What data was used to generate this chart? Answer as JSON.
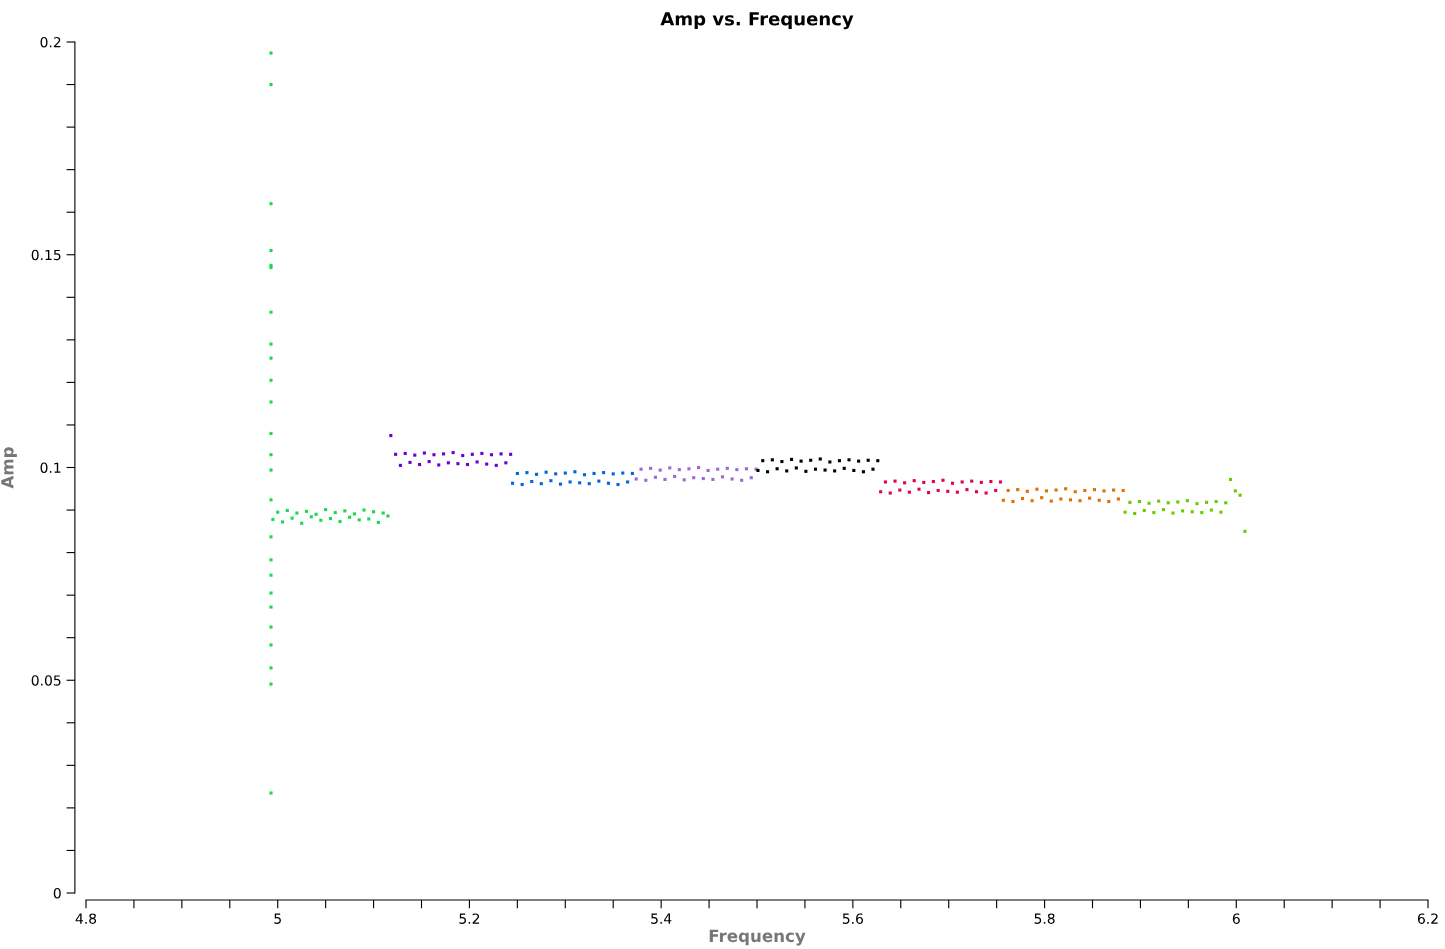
{
  "chart_data": {
    "type": "scatter",
    "title": "Amp vs. Frequency",
    "xlabel": "Frequency",
    "ylabel": "Amp",
    "marker": "square",
    "grid": false,
    "legend": false,
    "xlim": [
      4.8,
      6.2
    ],
    "ylim": [
      0,
      0.2
    ],
    "xticks": [
      4.8,
      {
        "value": 4.85,
        "label": null
      },
      {
        "value": 4.9,
        "label": null
      },
      {
        "value": 4.95,
        "label": null
      },
      {
        "value": 5,
        "label": "5"
      },
      {
        "value": 5.05,
        "label": null
      },
      {
        "value": 5.1,
        "label": null
      },
      {
        "value": 5.15,
        "label": null
      },
      5.2,
      {
        "value": 5.25,
        "label": null
      },
      {
        "value": 5.3,
        "label": null
      },
      {
        "value": 5.35,
        "label": null
      },
      5.4,
      {
        "value": 5.45,
        "label": null
      },
      {
        "value": 5.5,
        "label": null
      },
      {
        "value": 5.55,
        "label": null
      },
      5.6,
      {
        "value": 5.65,
        "label": null
      },
      {
        "value": 5.7,
        "label": null
      },
      {
        "value": 5.75,
        "label": null
      },
      5.8,
      {
        "value": 5.85,
        "label": null
      },
      {
        "value": 5.9,
        "label": null
      },
      {
        "value": 5.95,
        "label": null
      },
      {
        "value": 6,
        "label": "6"
      },
      {
        "value": 6.05,
        "label": null
      },
      {
        "value": 6.1,
        "label": null
      },
      {
        "value": 6.15,
        "label": null
      },
      6.2
    ],
    "yticks": [
      {
        "value": 0,
        "label": "0"
      },
      {
        "value": 0.01,
        "label": null
      },
      {
        "value": 0.02,
        "label": null
      },
      {
        "value": 0.03,
        "label": null
      },
      {
        "value": 0.04,
        "label": null
      },
      0.05,
      {
        "value": 0.06,
        "label": null
      },
      {
        "value": 0.07,
        "label": null
      },
      {
        "value": 0.08,
        "label": null
      },
      {
        "value": 0.09,
        "label": null
      },
      0.1,
      {
        "value": 0.11,
        "label": null
      },
      {
        "value": 0.12,
        "label": null
      },
      {
        "value": 0.13,
        "label": null
      },
      {
        "value": 0.14,
        "label": null
      },
      0.15,
      {
        "value": 0.16,
        "label": null
      },
      {
        "value": 0.17,
        "label": null
      },
      {
        "value": 0.18,
        "label": null
      },
      {
        "value": 0.19,
        "label": null
      },
      0.2
    ],
    "series": [
      {
        "color": "#1ad94f",
        "x": [
          4.993,
          4.993,
          4.993,
          4.993,
          4.993,
          4.993,
          4.993,
          4.993,
          4.993,
          4.993,
          4.993,
          4.993,
          4.993,
          4.993,
          4.993,
          4.993,
          4.993,
          4.993,
          4.993,
          4.993,
          4.993,
          4.993,
          4.993,
          4.993,
          4.993,
          4.995,
          5.0,
          5.005,
          5.01,
          5.015,
          5.02,
          5.025,
          5.03,
          5.035,
          5.04,
          5.045,
          5.05,
          5.055,
          5.06,
          5.065,
          5.07,
          5.075,
          5.08,
          5.085,
          5.09,
          5.095,
          5.1,
          5.105,
          5.11,
          5.115
        ],
        "values": [
          0.1974,
          0.19,
          0.162,
          0.151,
          0.1475,
          0.147,
          0.1365,
          0.129,
          0.1257,
          0.1205,
          0.1154,
          0.108,
          0.103,
          0.0994,
          0.0924,
          0.0837,
          0.0783,
          0.0747,
          0.0705,
          0.0672,
          0.0625,
          0.0583,
          0.0529,
          0.0491,
          0.0235,
          0.0878,
          0.0895,
          0.0872,
          0.0899,
          0.0881,
          0.0893,
          0.0869,
          0.0897,
          0.0884,
          0.089,
          0.0876,
          0.0901,
          0.088,
          0.0894,
          0.0873,
          0.0898,
          0.0883,
          0.0891,
          0.0877,
          0.09,
          0.0879,
          0.0896,
          0.0871,
          0.0893,
          0.0886
        ]
      },
      {
        "color": "#6a00d8",
        "x": [
          5.118,
          5.123,
          5.128,
          5.133,
          5.138,
          5.143,
          5.148,
          5.153,
          5.158,
          5.163,
          5.168,
          5.173,
          5.178,
          5.183,
          5.188,
          5.193,
          5.198,
          5.203,
          5.208,
          5.213,
          5.218,
          5.223,
          5.228,
          5.233,
          5.238,
          5.243
        ],
        "values": [
          0.1075,
          0.1031,
          0.1005,
          0.1033,
          0.1012,
          0.1029,
          0.1007,
          0.1034,
          0.1014,
          0.103,
          0.1006,
          0.1032,
          0.1011,
          0.1035,
          0.1009,
          0.1028,
          0.1007,
          0.1031,
          0.1013,
          0.1033,
          0.1008,
          0.103,
          0.1005,
          0.1032,
          0.1011,
          0.1031
        ]
      },
      {
        "color": "#0066e0",
        "x": [
          5.245,
          5.25,
          5.255,
          5.26,
          5.265,
          5.27,
          5.275,
          5.28,
          5.285,
          5.29,
          5.295,
          5.3,
          5.305,
          5.31,
          5.315,
          5.32,
          5.325,
          5.33,
          5.335,
          5.34,
          5.345,
          5.35,
          5.355,
          5.36,
          5.365,
          5.37
        ],
        "values": [
          0.0963,
          0.0986,
          0.096,
          0.0988,
          0.0967,
          0.0984,
          0.0962,
          0.0989,
          0.0969,
          0.0985,
          0.0961,
          0.0987,
          0.0966,
          0.099,
          0.0964,
          0.0983,
          0.0962,
          0.0986,
          0.0968,
          0.0988,
          0.0963,
          0.0985,
          0.096,
          0.0987,
          0.0966,
          0.0986
        ]
      },
      {
        "color": "#a066d8",
        "x": [
          5.374,
          5.379,
          5.384,
          5.389,
          5.394,
          5.399,
          5.404,
          5.409,
          5.414,
          5.419,
          5.424,
          5.429,
          5.434,
          5.439,
          5.444,
          5.449,
          5.454,
          5.459,
          5.464,
          5.469,
          5.474,
          5.479,
          5.484,
          5.489,
          5.494,
          5.499
        ],
        "values": [
          0.0973,
          0.0996,
          0.097,
          0.0998,
          0.0977,
          0.0994,
          0.0972,
          0.0999,
          0.0979,
          0.0995,
          0.0971,
          0.0997,
          0.0976,
          0.1,
          0.0974,
          0.0993,
          0.0972,
          0.0996,
          0.0978,
          0.0998,
          0.0973,
          0.0995,
          0.097,
          0.0997,
          0.0976,
          0.0996
        ]
      },
      {
        "color": "#000000",
        "x": [
          5.501,
          5.506,
          5.511,
          5.516,
          5.521,
          5.526,
          5.531,
          5.536,
          5.541,
          5.546,
          5.551,
          5.556,
          5.561,
          5.566,
          5.571,
          5.576,
          5.581,
          5.586,
          5.591,
          5.596,
          5.601,
          5.606,
          5.611,
          5.616,
          5.621,
          5.626
        ],
        "values": [
          0.0993,
          0.1016,
          0.099,
          0.1018,
          0.0997,
          0.1014,
          0.0992,
          0.1019,
          0.0999,
          0.1015,
          0.0991,
          0.1017,
          0.0996,
          0.102,
          0.0994,
          0.1013,
          0.0992,
          0.1016,
          0.0998,
          0.1018,
          0.0993,
          0.1015,
          0.099,
          0.1017,
          0.0996,
          0.1016
        ]
      },
      {
        "color": "#e00055",
        "x": [
          5.629,
          5.634,
          5.639,
          5.644,
          5.649,
          5.654,
          5.659,
          5.664,
          5.669,
          5.674,
          5.679,
          5.684,
          5.689,
          5.694,
          5.699,
          5.704,
          5.709,
          5.714,
          5.719,
          5.724,
          5.729,
          5.734,
          5.739,
          5.744,
          5.749,
          5.754
        ],
        "values": [
          0.0943,
          0.0966,
          0.094,
          0.0968,
          0.0947,
          0.0964,
          0.0942,
          0.0969,
          0.0949,
          0.0965,
          0.0941,
          0.0967,
          0.0946,
          0.097,
          0.0944,
          0.0963,
          0.0942,
          0.0966,
          0.0948,
          0.0968,
          0.0943,
          0.0965,
          0.094,
          0.0967,
          0.0946,
          0.0966
        ]
      },
      {
        "color": "#e07000",
        "x": [
          5.757,
          5.762,
          5.767,
          5.772,
          5.777,
          5.782,
          5.787,
          5.792,
          5.797,
          5.802,
          5.807,
          5.812,
          5.817,
          5.822,
          5.827,
          5.832,
          5.837,
          5.842,
          5.847,
          5.852,
          5.857,
          5.862,
          5.867,
          5.872,
          5.877,
          5.882
        ],
        "values": [
          0.0923,
          0.0946,
          0.092,
          0.0948,
          0.0927,
          0.0944,
          0.0922,
          0.0949,
          0.0929,
          0.0945,
          0.0921,
          0.0947,
          0.0926,
          0.095,
          0.0924,
          0.0943,
          0.0922,
          0.0946,
          0.0928,
          0.0948,
          0.0923,
          0.0945,
          0.092,
          0.0947,
          0.0926,
          0.0946
        ]
      },
      {
        "color": "#66cc00",
        "x": [
          5.884,
          5.889,
          5.894,
          5.899,
          5.904,
          5.909,
          5.914,
          5.919,
          5.924,
          5.929,
          5.934,
          5.939,
          5.944,
          5.949,
          5.954,
          5.959,
          5.964,
          5.969,
          5.974,
          5.979,
          5.984,
          5.989,
          5.994,
          5.999,
          6.004,
          6.009
        ],
        "values": [
          0.0895,
          0.0918,
          0.0892,
          0.092,
          0.0899,
          0.0916,
          0.0894,
          0.0921,
          0.0901,
          0.0917,
          0.0893,
          0.0919,
          0.0898,
          0.0922,
          0.0896,
          0.0915,
          0.0894,
          0.0918,
          0.09,
          0.092,
          0.0895,
          0.0917,
          0.0972,
          0.0945,
          0.0935,
          0.085
        ]
      }
    ]
  }
}
